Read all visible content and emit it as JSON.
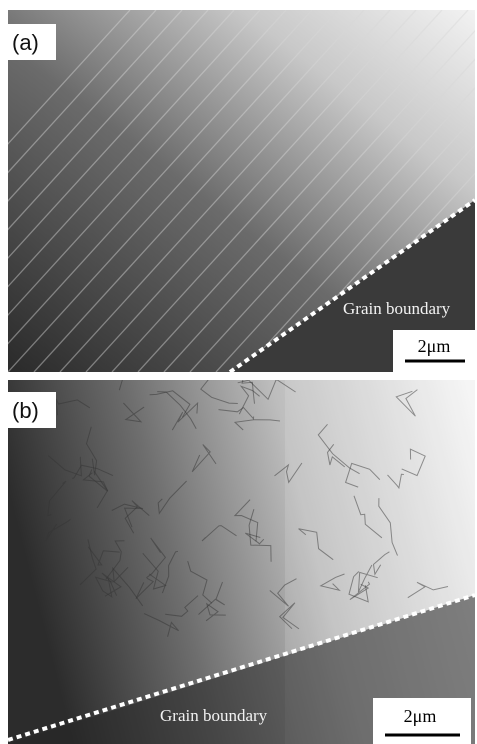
{
  "panels": [
    {
      "label": "(a)",
      "annotation": "Grain boundary",
      "scale_bar": "2μm"
    },
    {
      "label": "(b)",
      "annotation": "Grain boundary",
      "scale_bar": "2μm"
    }
  ]
}
